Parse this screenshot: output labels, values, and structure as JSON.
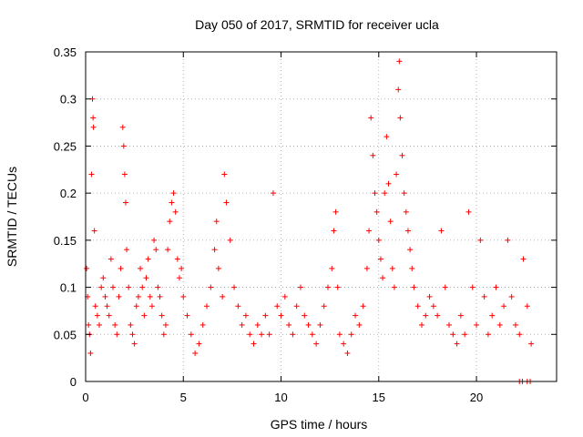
{
  "chart_data": {
    "type": "scatter",
    "title": "Day 050 of 2017, SRMTID for receiver ucla",
    "xlabel": "GPS time / hours",
    "ylabel": "SRMTID / TECUs",
    "xlim": [
      0,
      24.1
    ],
    "ylim": [
      0,
      0.35
    ],
    "xticks": [
      0,
      5,
      10,
      15,
      20
    ],
    "yticks": [
      0,
      0.05,
      0.1,
      0.15,
      0.2,
      0.25,
      0.3,
      0.35
    ],
    "xtick_labels": [
      "0",
      "5",
      "10",
      "15",
      "20"
    ],
    "ytick_labels": [
      "0",
      "0.05",
      "0.1",
      "0.15",
      "0.2",
      "0.25",
      "0.3",
      "0.35"
    ],
    "grid": true,
    "marker": "plus",
    "color": "#ff0000",
    "series": [
      {
        "name": "SRMTID",
        "points": [
          [
            0.05,
            0.12
          ],
          [
            0.1,
            0.09
          ],
          [
            0.15,
            0.06
          ],
          [
            0.2,
            0.05
          ],
          [
            0.25,
            0.03
          ],
          [
            0.3,
            0.22
          ],
          [
            0.35,
            0.3
          ],
          [
            0.38,
            0.28
          ],
          [
            0.4,
            0.27
          ],
          [
            0.45,
            0.16
          ],
          [
            0.5,
            0.08
          ],
          [
            0.6,
            0.07
          ],
          [
            0.7,
            0.06
          ],
          [
            0.8,
            0.1
          ],
          [
            0.9,
            0.11
          ],
          [
            1.0,
            0.09
          ],
          [
            1.1,
            0.08
          ],
          [
            1.2,
            0.07
          ],
          [
            1.3,
            0.13
          ],
          [
            1.4,
            0.1
          ],
          [
            1.5,
            0.06
          ],
          [
            1.6,
            0.05
          ],
          [
            1.7,
            0.09
          ],
          [
            1.8,
            0.12
          ],
          [
            1.9,
            0.27
          ],
          [
            1.95,
            0.25
          ],
          [
            2.0,
            0.22
          ],
          [
            2.05,
            0.19
          ],
          [
            2.1,
            0.14
          ],
          [
            2.2,
            0.1
          ],
          [
            2.3,
            0.06
          ],
          [
            2.4,
            0.05
          ],
          [
            2.5,
            0.04
          ],
          [
            2.6,
            0.08
          ],
          [
            2.7,
            0.09
          ],
          [
            2.8,
            0.12
          ],
          [
            2.9,
            0.1
          ],
          [
            3.0,
            0.07
          ],
          [
            3.1,
            0.11
          ],
          [
            3.2,
            0.13
          ],
          [
            3.3,
            0.09
          ],
          [
            3.4,
            0.08
          ],
          [
            3.5,
            0.15
          ],
          [
            3.6,
            0.14
          ],
          [
            3.7,
            0.1
          ],
          [
            3.8,
            0.09
          ],
          [
            3.9,
            0.07
          ],
          [
            4.0,
            0.05
          ],
          [
            4.1,
            0.06
          ],
          [
            4.2,
            0.14
          ],
          [
            4.3,
            0.17
          ],
          [
            4.4,
            0.19
          ],
          [
            4.5,
            0.2
          ],
          [
            4.6,
            0.18
          ],
          [
            4.7,
            0.13
          ],
          [
            4.8,
            0.11
          ],
          [
            4.9,
            0.12
          ],
          [
            5.0,
            0.09
          ],
          [
            5.2,
            0.07
          ],
          [
            5.4,
            0.05
          ],
          [
            5.6,
            0.03
          ],
          [
            5.8,
            0.04
          ],
          [
            6.0,
            0.06
          ],
          [
            6.2,
            0.08
          ],
          [
            6.4,
            0.1
          ],
          [
            6.6,
            0.14
          ],
          [
            6.7,
            0.17
          ],
          [
            6.8,
            0.12
          ],
          [
            7.0,
            0.09
          ],
          [
            7.1,
            0.22
          ],
          [
            7.2,
            0.19
          ],
          [
            7.4,
            0.15
          ],
          [
            7.6,
            0.1
          ],
          [
            7.8,
            0.08
          ],
          [
            8.0,
            0.06
          ],
          [
            8.2,
            0.07
          ],
          [
            8.4,
            0.05
          ],
          [
            8.6,
            0.04
          ],
          [
            8.8,
            0.06
          ],
          [
            9.0,
            0.05
          ],
          [
            9.2,
            0.07
          ],
          [
            9.4,
            0.05
          ],
          [
            9.6,
            0.2
          ],
          [
            9.8,
            0.08
          ],
          [
            10.0,
            0.07
          ],
          [
            10.2,
            0.09
          ],
          [
            10.4,
            0.06
          ],
          [
            10.6,
            0.05
          ],
          [
            10.8,
            0.08
          ],
          [
            11.0,
            0.1
          ],
          [
            11.2,
            0.07
          ],
          [
            11.4,
            0.06
          ],
          [
            11.6,
            0.05
          ],
          [
            11.8,
            0.04
          ],
          [
            12.0,
            0.06
          ],
          [
            12.2,
            0.08
          ],
          [
            12.4,
            0.1
          ],
          [
            12.6,
            0.12
          ],
          [
            12.7,
            0.16
          ],
          [
            12.8,
            0.18
          ],
          [
            12.9,
            0.1
          ],
          [
            13.0,
            0.05
          ],
          [
            13.2,
            0.04
          ],
          [
            13.4,
            0.03
          ],
          [
            13.6,
            0.05
          ],
          [
            13.8,
            0.07
          ],
          [
            14.0,
            0.06
          ],
          [
            14.2,
            0.08
          ],
          [
            14.4,
            0.12
          ],
          [
            14.5,
            0.16
          ],
          [
            14.6,
            0.28
          ],
          [
            14.7,
            0.24
          ],
          [
            14.8,
            0.2
          ],
          [
            14.9,
            0.18
          ],
          [
            15.0,
            0.15
          ],
          [
            15.1,
            0.13
          ],
          [
            15.2,
            0.11
          ],
          [
            15.3,
            0.2
          ],
          [
            15.4,
            0.26
          ],
          [
            15.5,
            0.21
          ],
          [
            15.6,
            0.17
          ],
          [
            15.7,
            0.12
          ],
          [
            15.8,
            0.1
          ],
          [
            15.9,
            0.22
          ],
          [
            16.0,
            0.31
          ],
          [
            16.05,
            0.34
          ],
          [
            16.1,
            0.28
          ],
          [
            16.2,
            0.24
          ],
          [
            16.3,
            0.2
          ],
          [
            16.4,
            0.18
          ],
          [
            16.5,
            0.16
          ],
          [
            16.6,
            0.14
          ],
          [
            16.7,
            0.12
          ],
          [
            16.8,
            0.1
          ],
          [
            17.0,
            0.08
          ],
          [
            17.2,
            0.06
          ],
          [
            17.4,
            0.07
          ],
          [
            17.6,
            0.09
          ],
          [
            17.8,
            0.08
          ],
          [
            18.0,
            0.07
          ],
          [
            18.2,
            0.16
          ],
          [
            18.4,
            0.1
          ],
          [
            18.6,
            0.06
          ],
          [
            18.8,
            0.05
          ],
          [
            19.0,
            0.04
          ],
          [
            19.2,
            0.07
          ],
          [
            19.4,
            0.05
          ],
          [
            19.6,
            0.18
          ],
          [
            19.8,
            0.1
          ],
          [
            20.0,
            0.06
          ],
          [
            20.2,
            0.15
          ],
          [
            20.4,
            0.09
          ],
          [
            20.6,
            0.05
          ],
          [
            20.8,
            0.07
          ],
          [
            21.0,
            0.1
          ],
          [
            21.2,
            0.06
          ],
          [
            21.4,
            0.08
          ],
          [
            21.6,
            0.15
          ],
          [
            21.8,
            0.09
          ],
          [
            22.0,
            0.06
          ],
          [
            22.2,
            0.05
          ],
          [
            22.4,
            0.13
          ],
          [
            22.6,
            0.08
          ],
          [
            22.8,
            0.04
          ],
          [
            22.2,
            0.0
          ],
          [
            22.35,
            0.0
          ],
          [
            22.6,
            0.0
          ],
          [
            22.75,
            0.0
          ]
        ]
      }
    ]
  }
}
